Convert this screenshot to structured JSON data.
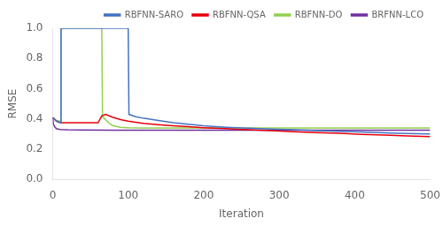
{
  "chart_data": {
    "type": "line",
    "xlabel": "Iteration",
    "ylabel": "RMSE",
    "xlim": [
      0,
      500
    ],
    "ylim": [
      0.0,
      1.0
    ],
    "xticks": [
      0,
      100,
      200,
      300,
      400,
      500
    ],
    "yticks": [
      {
        "value": 0.0,
        "label": "0.0"
      },
      0.2,
      0.4,
      0.6,
      0.8,
      {
        "value": 1.0,
        "label": "1.0"
      }
    ],
    "grid": false,
    "legend": "upper right",
    "series": [
      {
        "name": "RBFNN-SARO",
        "color": "#4472C4",
        "x": [
          0,
          5,
          10,
          11,
          100,
          101,
          110,
          120,
          140,
          160,
          180,
          200,
          230,
          260,
          290,
          320,
          350,
          380,
          410,
          440,
          470,
          500
        ],
        "values": [
          0.41,
          0.385,
          0.375,
          1.0,
          1.0,
          0.43,
          0.415,
          0.405,
          0.39,
          0.375,
          0.365,
          0.355,
          0.345,
          0.338,
          0.332,
          0.328,
          0.323,
          0.318,
          0.313,
          0.308,
          0.303,
          0.3
        ]
      },
      {
        "name": "RBFNN-QSA",
        "color": "#E8000A",
        "x": [
          0,
          5,
          10,
          60,
          65,
          70,
          80,
          90,
          100,
          120,
          140,
          160,
          180,
          200,
          230,
          260,
          290,
          320,
          350,
          380,
          410,
          440,
          470,
          500
        ],
        "values": [
          0.41,
          0.385,
          0.375,
          0.375,
          0.42,
          0.43,
          0.41,
          0.395,
          0.385,
          0.37,
          0.362,
          0.355,
          0.348,
          0.342,
          0.335,
          0.328,
          0.322,
          0.315,
          0.31,
          0.305,
          0.298,
          0.293,
          0.288,
          0.283
        ]
      },
      {
        "name": "RBFNN-DO",
        "color": "#92D050",
        "x": [
          0,
          5,
          10,
          11,
          65,
          66,
          75,
          80,
          90,
          100,
          120,
          140,
          160,
          200,
          250,
          300,
          350,
          400,
          450,
          500
        ],
        "values": [
          0.41,
          0.39,
          0.385,
          1.0,
          1.0,
          0.415,
          0.37,
          0.355,
          0.345,
          0.342,
          0.34,
          0.34,
          0.34,
          0.34,
          0.34,
          0.34,
          0.34,
          0.34,
          0.34,
          0.34
        ]
      },
      {
        "name": "BRFNN-LCO",
        "color": "#7030A0",
        "x": [
          0,
          1,
          3,
          5,
          10,
          20,
          40,
          80,
          150,
          200,
          300,
          400,
          500
        ],
        "values": [
          0.41,
          0.365,
          0.345,
          0.335,
          0.33,
          0.328,
          0.327,
          0.326,
          0.326,
          0.326,
          0.326,
          0.326,
          0.326
        ]
      }
    ]
  }
}
